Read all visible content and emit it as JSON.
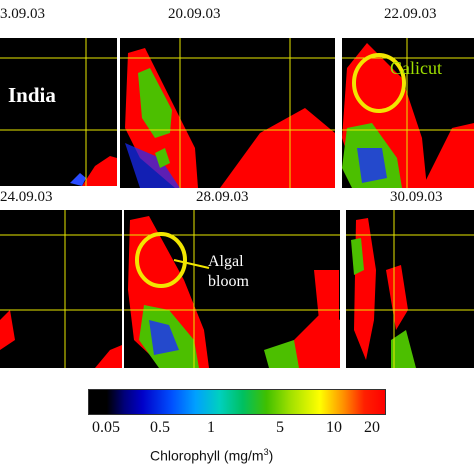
{
  "panels": [
    {
      "date": "3.09.03",
      "label": "India"
    },
    {
      "date": "20.09.03"
    },
    {
      "date": "22.09.03",
      "label": "Calicut"
    },
    {
      "date": "24.09.03"
    },
    {
      "date": "28.09.03",
      "label_line1": "Algal",
      "label_line2": "bloom"
    },
    {
      "date": "30.09.03"
    }
  ],
  "colorbar": {
    "ticks": [
      "0.05",
      "0.5",
      "1",
      "5",
      "10",
      "20"
    ],
    "label": "Chlorophyll (mg/m",
    "label_sup": "3",
    "label_end": ")"
  },
  "colors": {
    "high": "#ff0000",
    "mid": "#4cbf00",
    "low": "#000000",
    "grid": "#e8e800",
    "marker": "#f2e600"
  }
}
